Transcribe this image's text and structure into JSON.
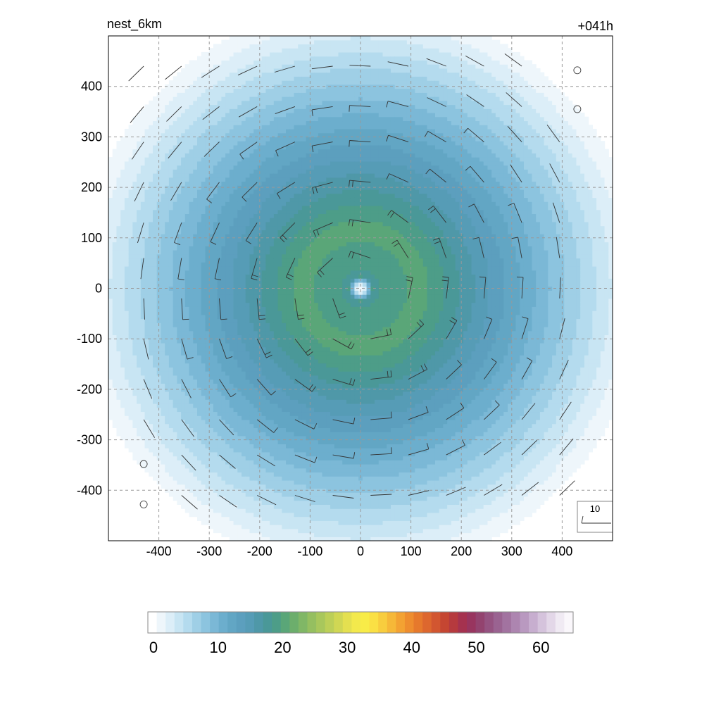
{
  "chart_data": {
    "type": "heatmap",
    "title_left": "nest_6km",
    "title_right": "+041h",
    "xlabel": "",
    "ylabel": "",
    "xlim": [
      -500,
      500
    ],
    "ylim": [
      -500,
      500
    ],
    "x_ticks": [
      -400,
      -300,
      -200,
      -100,
      0,
      100,
      200,
      300,
      400
    ],
    "y_ticks": [
      400,
      300,
      200,
      100,
      0,
      -100,
      -200,
      -300,
      -400
    ],
    "grid": true,
    "grid_style": "dashed",
    "field": {
      "description": "filled contours of a circular vortex",
      "center": [
        0,
        0
      ],
      "peak_value": 21,
      "peak_radius": 120,
      "eye_radius": 25,
      "decay_radius": 520,
      "edge_value": 1.5
    },
    "colorbar": {
      "min": 0,
      "max": 65,
      "tick_values": [
        0,
        10,
        20,
        30,
        40,
        50,
        60
      ],
      "tick_labels": [
        "0",
        "10",
        "20",
        "30",
        "40",
        "50",
        "60"
      ],
      "colors": [
        "#ffffff",
        "#eef6fb",
        "#dceef8",
        "#c8e5f3",
        "#b4dbee",
        "#9fcfe6",
        "#8cc4df",
        "#7bb8d6",
        "#6caecd",
        "#62a6c4",
        "#5c9fbe",
        "#569cb6",
        "#4f98a8",
        "#4a9898",
        "#4d9d88",
        "#5aa678",
        "#6cae6c",
        "#80b766",
        "#95bf60",
        "#a8c75c",
        "#bccf58",
        "#d0d754",
        "#e4e050",
        "#f3e94c",
        "#f8ec48",
        "#fae044",
        "#f8cd3e",
        "#f6b838",
        "#f3a232",
        "#ee8d2e",
        "#e6792c",
        "#dd672e",
        "#d25630",
        "#c54632",
        "#b63a3e",
        "#a5324f",
        "#98355f",
        "#93436f",
        "#955381",
        "#9a6391",
        "#a273a0",
        "#ad85b0",
        "#b999c0",
        "#c7aecf",
        "#d5c3dc",
        "#e3d7e8",
        "#f0eaf3",
        "#faf7fb"
      ]
    },
    "wind_barbs": {
      "grid_x": [
        -430,
        -355,
        -280,
        -205,
        -130,
        -55,
        20,
        95,
        170,
        245,
        320,
        395
      ],
      "grid_y": [
        440,
        360,
        290,
        210,
        130,
        60,
        -20,
        -100,
        -180,
        -260,
        -330,
        -410
      ],
      "units": "kt",
      "calm_points": [
        [
          430,
          432
        ],
        [
          430,
          355
        ],
        [
          -430,
          -348
        ],
        [
          -430,
          -428
        ]
      ]
    },
    "legend": {
      "placement": "bottom-right",
      "reference_barb_label": "10"
    }
  }
}
